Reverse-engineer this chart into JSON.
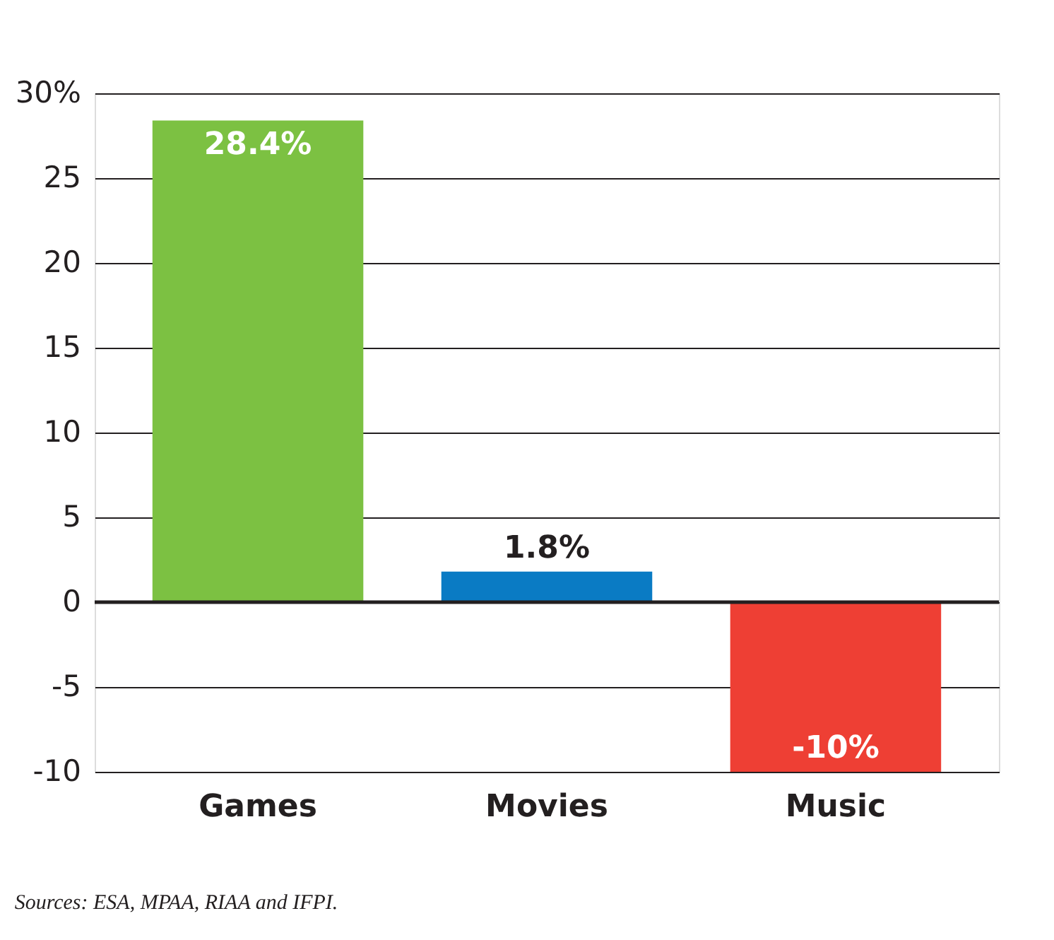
{
  "chart_data": {
    "type": "bar",
    "categories": [
      "Games",
      "Movies",
      "Music"
    ],
    "values": [
      28.4,
      1.8,
      -10
    ],
    "colors": [
      "#7cc142",
      "#0a7bc4",
      "#ee3f34"
    ],
    "value_labels": [
      "28.4%",
      "1.8%",
      "-10%"
    ],
    "ylim": [
      -10,
      30
    ],
    "yticks": [
      -10,
      -5,
      0,
      5,
      10,
      15,
      20,
      25,
      {
        "value": 30,
        "label": "30%"
      }
    ],
    "grid": "y",
    "ref_lines": [
      {
        "axis": "y",
        "value": 0,
        "label": null,
        "color": "#231f20"
      }
    ],
    "annotations": [
      "Sources: ESA, MPAA, RIAA and IFPI."
    ]
  }
}
